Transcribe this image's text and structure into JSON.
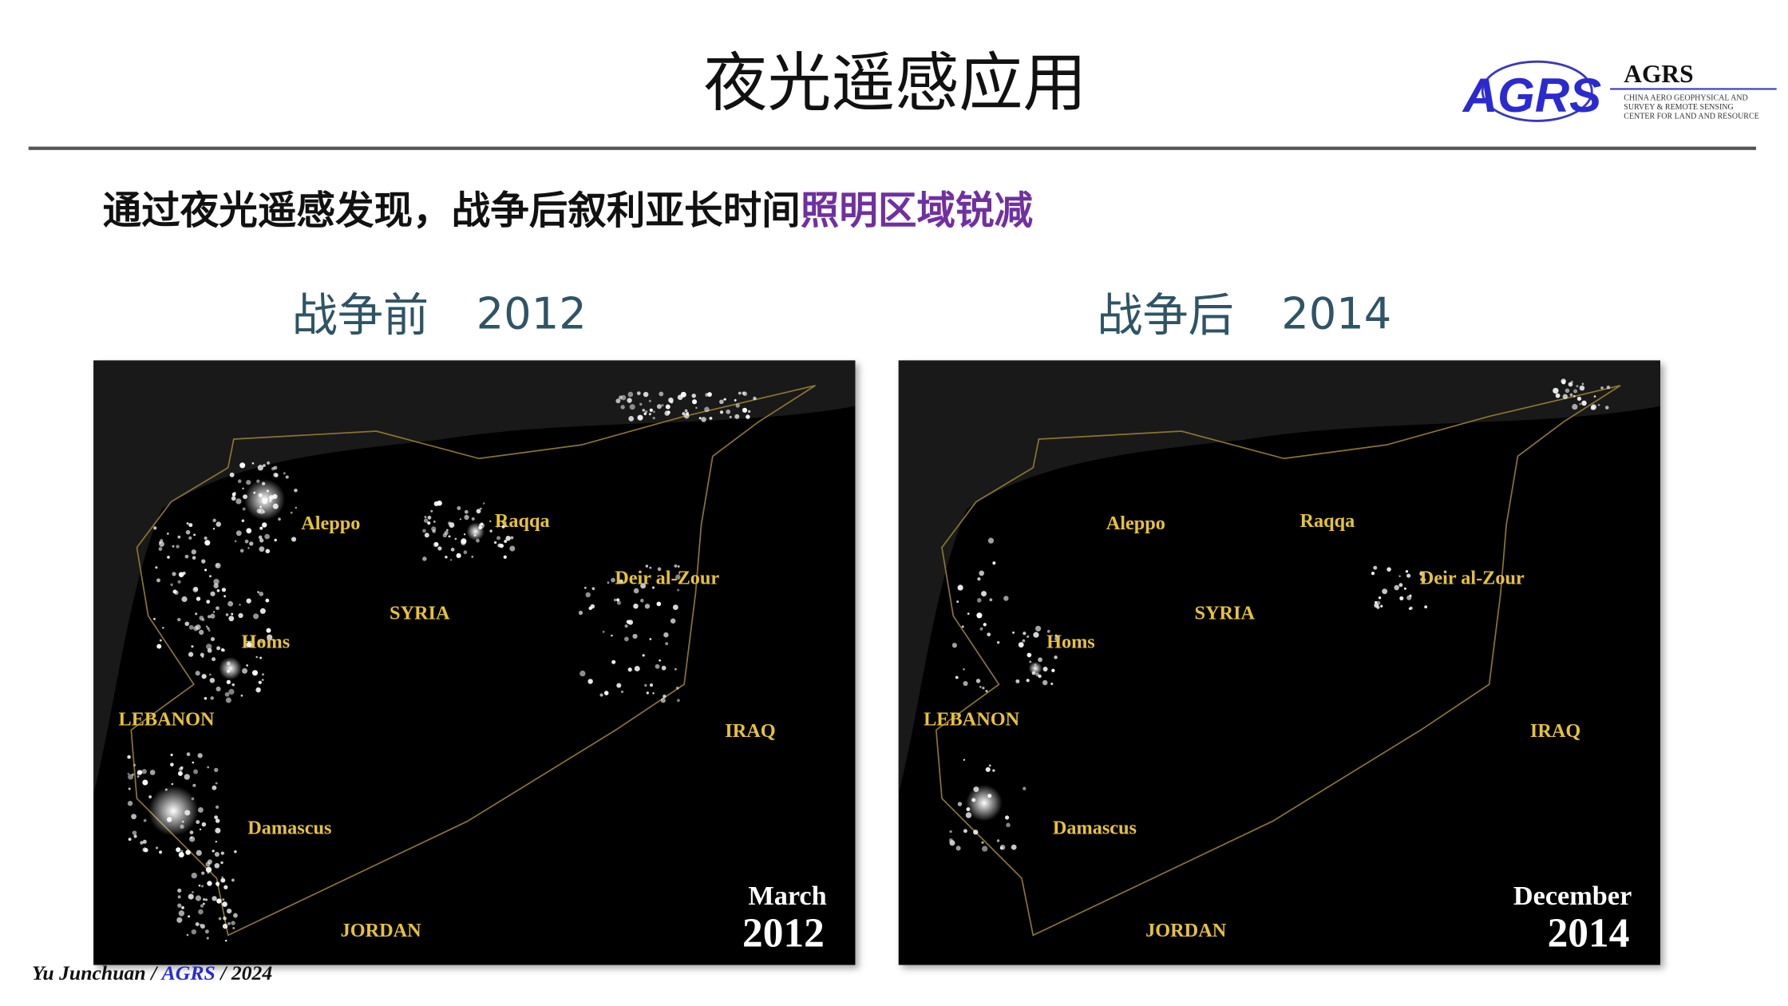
{
  "header": {
    "title": "夜光遥感应用",
    "logo": {
      "mark": "AGRS",
      "name": "AGRS",
      "lines": [
        "CHINA AERO GEOPHYSICAL AND",
        "SURVEY & REMOTE SENSING",
        "CENTER FOR LAND AND RESOURCE"
      ]
    }
  },
  "subtitle": {
    "text": "通过夜光遥感发现，战争后叙利亚长时间",
    "highlight": "照明区域锐减"
  },
  "panels": [
    {
      "heading": "战争前",
      "year": "2012",
      "labels": [
        "Aleppo",
        "Raqqa",
        "Deir al-Zour",
        "SYRIA",
        "Homs",
        "LEBANON",
        "IRAQ",
        "Damascus",
        "JORDAN"
      ],
      "date": {
        "month": "March",
        "year": "2012"
      }
    },
    {
      "heading": "战争后",
      "year": "2014",
      "labels": [
        "Aleppo",
        "Raqqa",
        "Deir al-Zour",
        "SYRIA",
        "Homs",
        "LEBANON",
        "IRAQ",
        "Damascus",
        "JORDAN"
      ],
      "date": {
        "month": "December",
        "year": "2014"
      }
    }
  ],
  "footer": {
    "author": "Yu Junchuan /",
    "org": "AGRS",
    "year": "/ 2024"
  }
}
